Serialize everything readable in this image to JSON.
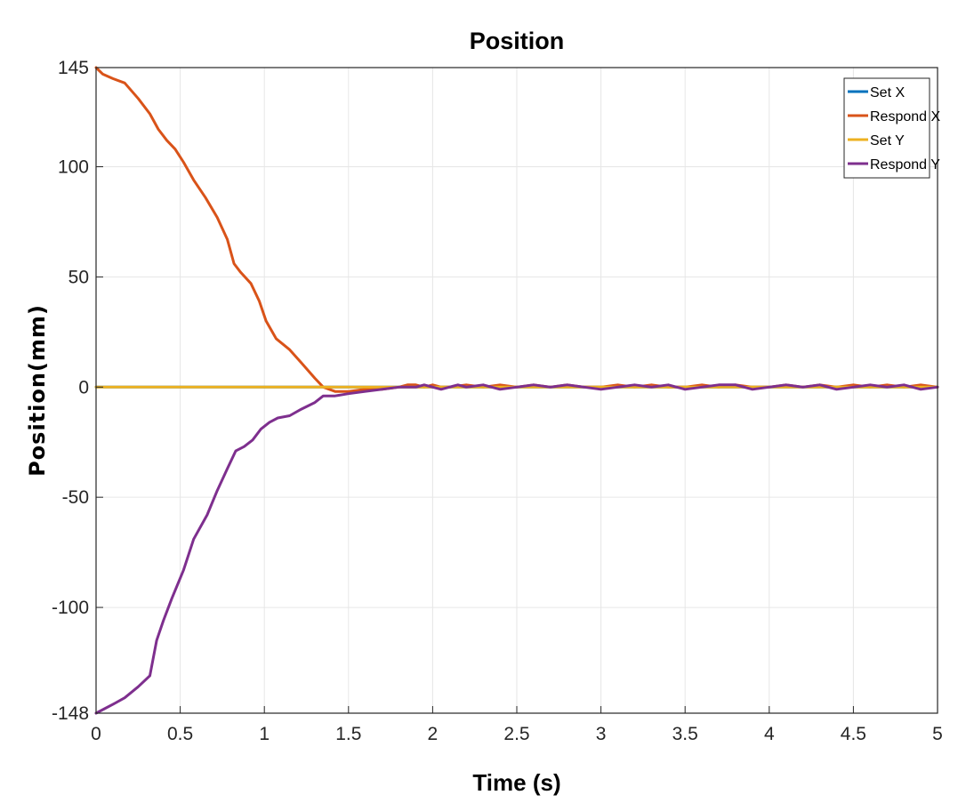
{
  "chart_data": {
    "type": "line",
    "title": "Position",
    "xlabel": "Time (s)",
    "ylabel": "Position(mm)",
    "xlim": [
      0,
      5
    ],
    "ylim": [
      -148,
      145
    ],
    "xticks": [
      0,
      0.5,
      1,
      1.5,
      2,
      2.5,
      3,
      3.5,
      4,
      4.5,
      5
    ],
    "xtick_labels": [
      "0",
      "0.5",
      "1",
      "1.5",
      "2",
      "2.5",
      "3",
      "3.5",
      "4",
      "4.5",
      "5"
    ],
    "yticks": [
      145,
      100,
      50,
      0,
      -50,
      -100,
      -148
    ],
    "ytick_labels": [
      "145",
      "100",
      "50",
      "0",
      "-50",
      "-100",
      "-148"
    ],
    "grid": true,
    "legend_position": "top-right",
    "series": [
      {
        "name": "Set X",
        "color": "#0072BD",
        "x": [
          0,
          5
        ],
        "y": [
          0,
          0
        ]
      },
      {
        "name": "Respond X",
        "color": "#D95319",
        "x": [
          0,
          0.04,
          0.1,
          0.17,
          0.25,
          0.32,
          0.37,
          0.42,
          0.47,
          0.52,
          0.58,
          0.65,
          0.72,
          0.78,
          0.82,
          0.86,
          0.92,
          0.97,
          1.01,
          1.07,
          1.15,
          1.22,
          1.3,
          1.35,
          1.42,
          1.5,
          1.6,
          1.7,
          1.8,
          1.85,
          1.9,
          1.95,
          2.0,
          2.05,
          2.1,
          2.2,
          2.3,
          2.4,
          2.5,
          2.6,
          2.7,
          2.8,
          2.9,
          3.0,
          3.1,
          3.2,
          3.3,
          3.4,
          3.5,
          3.6,
          3.7,
          3.8,
          3.9,
          4.0,
          4.1,
          4.2,
          4.3,
          4.4,
          4.5,
          4.6,
          4.7,
          4.8,
          4.9,
          5.0
        ],
        "y": [
          145,
          142,
          140,
          138,
          131,
          124,
          117,
          112,
          108,
          102,
          94,
          86,
          77,
          67,
          56,
          52,
          47,
          39,
          30,
          22,
          17,
          11,
          4,
          0,
          -2,
          -2,
          -1,
          -1,
          0,
          1,
          1,
          0,
          1,
          0,
          0,
          1,
          0,
          1,
          0,
          1,
          0,
          1,
          0,
          0,
          1,
          0,
          1,
          0,
          0,
          1,
          0,
          1,
          0,
          0,
          1,
          0,
          1,
          0,
          1,
          0,
          1,
          0,
          1,
          0
        ]
      },
      {
        "name": "Set Y",
        "color": "#EDB120",
        "x": [
          0,
          5
        ],
        "y": [
          0,
          0
        ]
      },
      {
        "name": "Respond Y",
        "color": "#7E2F8E",
        "x": [
          0,
          0.05,
          0.1,
          0.17,
          0.25,
          0.32,
          0.36,
          0.4,
          0.45,
          0.52,
          0.58,
          0.66,
          0.72,
          0.78,
          0.83,
          0.88,
          0.93,
          0.98,
          1.03,
          1.08,
          1.15,
          1.22,
          1.3,
          1.35,
          1.42,
          1.5,
          1.6,
          1.7,
          1.8,
          1.9,
          1.95,
          2.0,
          2.05,
          2.1,
          2.15,
          2.2,
          2.3,
          2.4,
          2.5,
          2.6,
          2.7,
          2.8,
          2.9,
          3.0,
          3.1,
          3.2,
          3.3,
          3.4,
          3.5,
          3.6,
          3.7,
          3.8,
          3.9,
          4.0,
          4.1,
          4.2,
          4.3,
          4.4,
          4.5,
          4.6,
          4.7,
          4.8,
          4.9,
          5.0
        ],
        "y": [
          -148,
          -146,
          -144,
          -141,
          -136,
          -131,
          -115,
          -106,
          -96,
          -83,
          -69,
          -58,
          -47,
          -37,
          -29,
          -27,
          -24,
          -19,
          -16,
          -14,
          -13,
          -10,
          -7,
          -4,
          -4,
          -3,
          -2,
          -1,
          0,
          0,
          1,
          0,
          -1,
          0,
          1,
          0,
          1,
          -1,
          0,
          1,
          0,
          1,
          0,
          -1,
          0,
          1,
          0,
          1,
          -1,
          0,
          1,
          1,
          -1,
          0,
          1,
          0,
          1,
          -1,
          0,
          1,
          0,
          1,
          -1,
          0
        ]
      }
    ]
  }
}
